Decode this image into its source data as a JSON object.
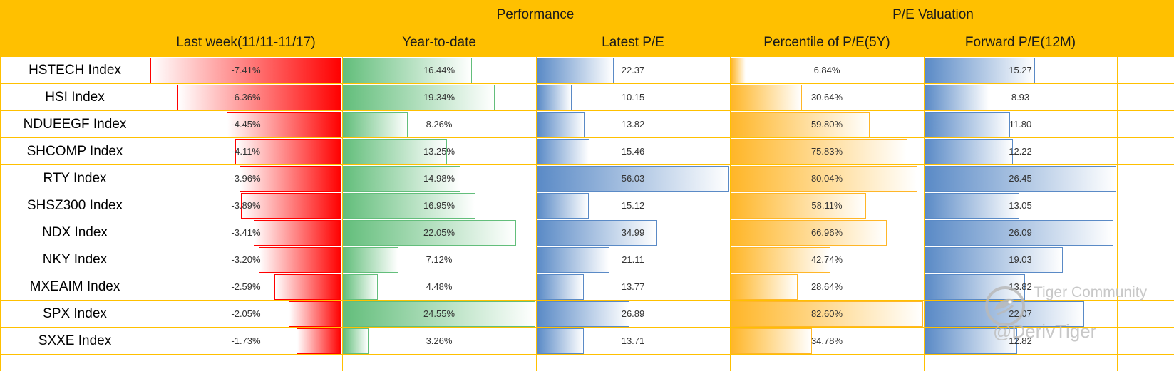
{
  "header": {
    "groups": [
      "Performance",
      "P/E Valuation"
    ],
    "columns": [
      "Last week(11/11-11/17)",
      "Year-to-date",
      "Latest P/E",
      "Percentile of P/E(5Y)",
      "Forward P/E(12M)"
    ]
  },
  "rows": [
    {
      "name": "HSTECH Index",
      "last_week": "-7.41%",
      "ytd": "16.44%",
      "latest_pe": "22.37",
      "percentile": "6.84%",
      "forward_pe": "15.27"
    },
    {
      "name": "HSI Index",
      "last_week": "-6.36%",
      "ytd": "19.34%",
      "latest_pe": "10.15",
      "percentile": "30.64%",
      "forward_pe": "8.93"
    },
    {
      "name": "NDUEEGF Index",
      "last_week": "-4.45%",
      "ytd": "8.26%",
      "latest_pe": "13.82",
      "percentile": "59.80%",
      "forward_pe": "11.80"
    },
    {
      "name": "SHCOMP Index",
      "last_week": "-4.11%",
      "ytd": "13.25%",
      "latest_pe": "15.46",
      "percentile": "75.83%",
      "forward_pe": "12.22"
    },
    {
      "name": "RTY Index",
      "last_week": "-3.96%",
      "ytd": "14.98%",
      "latest_pe": "56.03",
      "percentile": "80.04%",
      "forward_pe": "26.45"
    },
    {
      "name": "SHSZ300 Index",
      "last_week": "-3.89%",
      "ytd": "16.95%",
      "latest_pe": "15.12",
      "percentile": "58.11%",
      "forward_pe": "13.05"
    },
    {
      "name": "NDX Index",
      "last_week": "-3.41%",
      "ytd": "22.05%",
      "latest_pe": "34.99",
      "percentile": "66.96%",
      "forward_pe": "26.09"
    },
    {
      "name": "NKY Index",
      "last_week": "-3.20%",
      "ytd": "7.12%",
      "latest_pe": "21.11",
      "percentile": "42.74%",
      "forward_pe": "19.03"
    },
    {
      "name": "MXEAIM Index",
      "last_week": "-2.59%",
      "ytd": "4.48%",
      "latest_pe": "13.77",
      "percentile": "28.64%",
      "forward_pe": "13.82"
    },
    {
      "name": "SPX Index",
      "last_week": "-2.05%",
      "ytd": "24.55%",
      "latest_pe": "26.89",
      "percentile": "82.60%",
      "forward_pe": "22.07"
    },
    {
      "name": "SXXE Index",
      "last_week": "-1.73%",
      "ytd": "3.26%",
      "latest_pe": "13.71",
      "percentile": "34.78%",
      "forward_pe": "12.82"
    }
  ],
  "colors": {
    "header_bg": "#ffc000",
    "grid": "#ffc000",
    "last_week_bar": "#ff0000",
    "ytd_bar": "#63be7b",
    "latest_pe_bar": "#5a8ac6",
    "percentile_bar": "#ffb628",
    "forward_pe_bar": "#5a8ac6"
  },
  "watermark": {
    "brand": "Tiger Community",
    "handle": "@DerivTiger",
    "logo_icon": "tiger-logo-icon"
  }
}
